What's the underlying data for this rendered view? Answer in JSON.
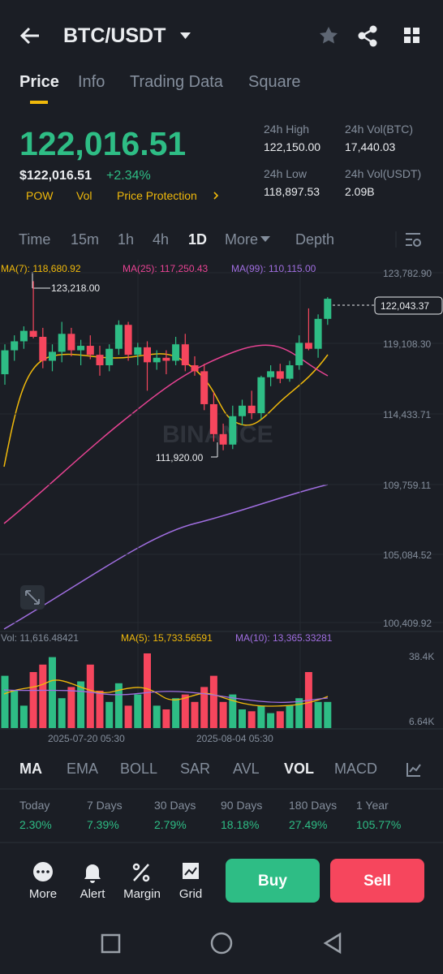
{
  "header": {
    "title": "BTC/USDT"
  },
  "tabs": [
    "Price",
    "Info",
    "Trading Data",
    "Square"
  ],
  "price": {
    "last": "122,016.51",
    "fiat": "$122,016.51",
    "change": "+2.34%",
    "tags": [
      "POW",
      "Vol",
      "Price Protection"
    ]
  },
  "stats": [
    {
      "label": "24h High",
      "value": "122,150.00"
    },
    {
      "label": "24h Vol(BTC)",
      "value": "17,440.03"
    },
    {
      "label": "24h Low",
      "value": "118,897.53"
    },
    {
      "label": "24h Vol(USDT)",
      "value": "2.09B"
    }
  ],
  "intervals": [
    "Time",
    "15m",
    "1h",
    "4h",
    "1D",
    "More",
    "Depth"
  ],
  "chart": {
    "ma_legend": [
      "MA(7): 118,680.92",
      "MA(25): 117,250.43",
      "MA(99): 110,115.00"
    ],
    "price_axis": [
      "123,782.90",
      "119,108.30",
      "114,433.71",
      "109,759.11",
      "105,084.52",
      "100,409.92"
    ],
    "ylim": [
      100409.92,
      123782.9
    ],
    "last_price": "122,043.37",
    "high_label": "123,218.00",
    "low_label": "111,920.00",
    "watermark": "BINANCE",
    "candles": [
      [
        117000,
        119000,
        116300,
        118600
      ],
      [
        118600,
        119600,
        117900,
        119200
      ],
      [
        119200,
        120200,
        118700,
        119900
      ],
      [
        119900,
        123218,
        119400,
        119500
      ],
      [
        119500,
        120100,
        117400,
        117900
      ],
      [
        117900,
        119000,
        117200,
        118500
      ],
      [
        118500,
        120500,
        117800,
        119700
      ],
      [
        119700,
        120100,
        118200,
        118600
      ],
      [
        118600,
        119300,
        117600,
        118900
      ],
      [
        118900,
        119600,
        118000,
        118300
      ],
      [
        118300,
        118900,
        116900,
        117600
      ],
      [
        117600,
        119000,
        117200,
        118700
      ],
      [
        118700,
        120600,
        118300,
        120300
      ],
      [
        120300,
        120500,
        117900,
        118300
      ],
      [
        118300,
        119100,
        117600,
        118800
      ],
      [
        118800,
        119200,
        115900,
        117800
      ],
      [
        117800,
        118600,
        117300,
        118100
      ],
      [
        118100,
        118600,
        117000,
        117900
      ],
      [
        117900,
        119500,
        117600,
        119000
      ],
      [
        119000,
        119700,
        117200,
        117600
      ],
      [
        117600,
        118200,
        116900,
        117200
      ],
      [
        117200,
        117700,
        114600,
        115000
      ],
      [
        115000,
        115800,
        112500,
        113000
      ],
      [
        113000,
        113700,
        111920,
        112300
      ],
      [
        112300,
        114900,
        112000,
        114200
      ],
      [
        114200,
        115300,
        113600,
        114900
      ],
      [
        114900,
        115900,
        114000,
        114400
      ],
      [
        114400,
        116900,
        114000,
        116800
      ],
      [
        116800,
        117600,
        116200,
        117200
      ],
      [
        117200,
        117700,
        116400,
        116700
      ],
      [
        116700,
        117900,
        116500,
        117600
      ],
      [
        117600,
        119600,
        117300,
        119100
      ],
      [
        119100,
        121400,
        118600,
        118700
      ],
      [
        118700,
        121000,
        118100,
        120700
      ],
      [
        120700,
        122150,
        120300,
        122043.37
      ]
    ],
    "volume_legend": [
      "Vol: 11,616.48421",
      "MA(5): 15,733.56591",
      "MA(10): 13,365.33281"
    ],
    "volume_axis": [
      "38.4K",
      "6.64K"
    ],
    "vlim": [
      0,
      40
    ],
    "volumes": [
      28,
      20,
      12,
      30,
      34,
      38,
      16,
      22,
      25,
      34,
      20,
      14,
      24,
      12,
      18,
      40,
      12,
      10,
      16,
      18,
      14,
      22,
      28,
      14,
      18,
      10,
      9,
      12,
      8,
      9,
      12,
      16,
      30,
      14,
      14
    ],
    "dates": [
      "2025-07-20 05:30",
      "2025-08-04 05:30"
    ]
  },
  "indicators": [
    "MA",
    "EMA",
    "BOLL",
    "SAR",
    "AVL",
    "VOL",
    "MACD"
  ],
  "performance": [
    {
      "period": "Today",
      "value": "2.30%"
    },
    {
      "period": "7 Days",
      "value": "7.39%"
    },
    {
      "period": "30 Days",
      "value": "2.79%"
    },
    {
      "period": "90 Days",
      "value": "18.18%"
    },
    {
      "period": "180 Days",
      "value": "27.49%"
    },
    {
      "period": "1 Year",
      "value": "105.77%"
    }
  ],
  "actions": [
    "More",
    "Alert",
    "Margin",
    "Grid"
  ],
  "buttons": [
    "Buy",
    "Sell"
  ]
}
